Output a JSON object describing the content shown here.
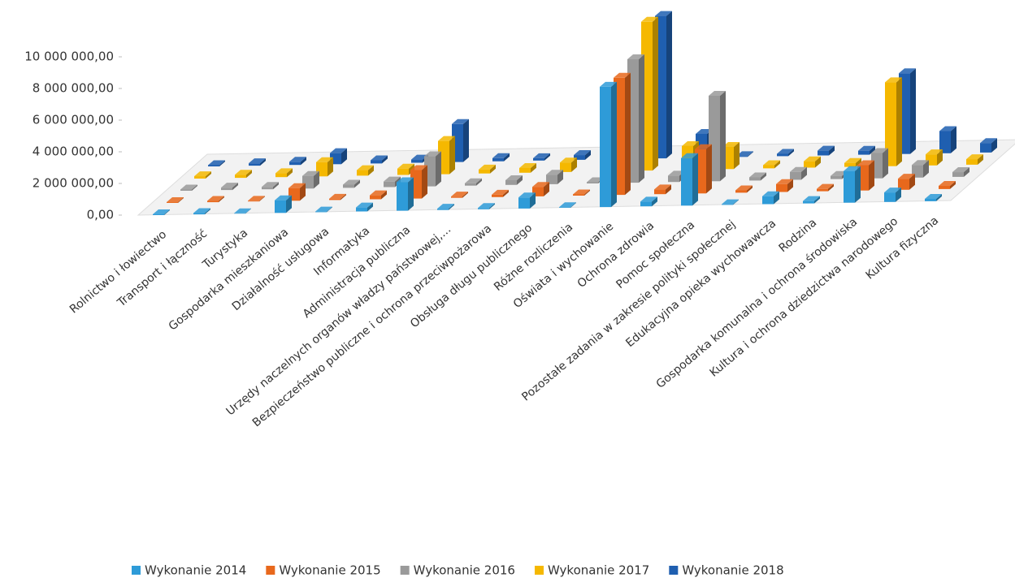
{
  "chart_data": {
    "type": "bar3d",
    "categories": [
      "Rolnictwo i łowiectwo",
      "Transport i łączność",
      "Turystyka",
      "Gospodarka mieszkaniowa",
      "Działalność usługowa",
      "Informatyka",
      "Administracja publiczna",
      "Urzędy naczelnych organów władzy państwowej,...",
      "Bezpieczeństwo publiczne i ochrona przeciwpożarowa",
      "Obsługa długu publicznego",
      "Różne rozliczenia",
      "Oświata i wychowanie",
      "Ochrona zdrowia",
      "Pomoc społeczna",
      "Pozostałe zadania w zakresie polityki społecznej",
      "Edukacyjna opieka wychowawcza",
      "Rodzina",
      "Gospodarka komunalna i ochrona środowiska",
      "Kultura i ochrona dziedzictwa narodowego",
      "Kultura fizyczna"
    ],
    "series": [
      {
        "name": "Wykonanie 2014",
        "color": "#2e9bd8",
        "values": [
          50000,
          80000,
          20000,
          800000,
          40000,
          250000,
          1800000,
          80000,
          80000,
          700000,
          40000,
          7600000,
          300000,
          3000000,
          40000,
          500000,
          150000,
          2000000,
          600000,
          150000
        ]
      },
      {
        "name": "Wykonanie 2015",
        "color": "#e8681c",
        "values": [
          50000,
          80000,
          40000,
          800000,
          80000,
          250000,
          1800000,
          80000,
          150000,
          600000,
          80000,
          7400000,
          300000,
          2800000,
          150000,
          500000,
          150000,
          1600000,
          700000,
          200000
        ]
      },
      {
        "name": "Wykonanie 2016",
        "color": "#9a9a9a",
        "values": [
          80000,
          150000,
          150000,
          800000,
          200000,
          350000,
          1900000,
          150000,
          300000,
          600000,
          80000,
          7800000,
          400000,
          5400000,
          200000,
          500000,
          200000,
          1600000,
          800000,
          300000
        ]
      },
      {
        "name": "Wykonanie 2017",
        "color": "#f5b800",
        "values": [
          150000,
          200000,
          250000,
          900000,
          350000,
          400000,
          2100000,
          250000,
          300000,
          600000,
          150000,
          9400000,
          1500000,
          1400000,
          200000,
          400000,
          250000,
          5300000,
          700000,
          350000
        ]
      },
      {
        "name": "Wykonanie 2018",
        "color": "#1f5fb0",
        "values": [
          80000,
          150000,
          200000,
          700000,
          200000,
          200000,
          2400000,
          200000,
          150000,
          300000,
          100000,
          9000000,
          1500000,
          50000,
          150000,
          300000,
          250000,
          5100000,
          1400000,
          600000
        ]
      }
    ],
    "ylim": [
      0,
      10000000
    ],
    "yticks": [
      {
        "value": 0,
        "label": "0,00"
      },
      {
        "value": 2000000,
        "label": "2 000 000,00"
      },
      {
        "value": 4000000,
        "label": "4 000 000,00"
      },
      {
        "value": 6000000,
        "label": "6 000 000,00"
      },
      {
        "value": 8000000,
        "label": "8 000 000,00"
      },
      {
        "value": 10000000,
        "label": "10 000 000,00"
      }
    ],
    "legend": "bottom"
  }
}
